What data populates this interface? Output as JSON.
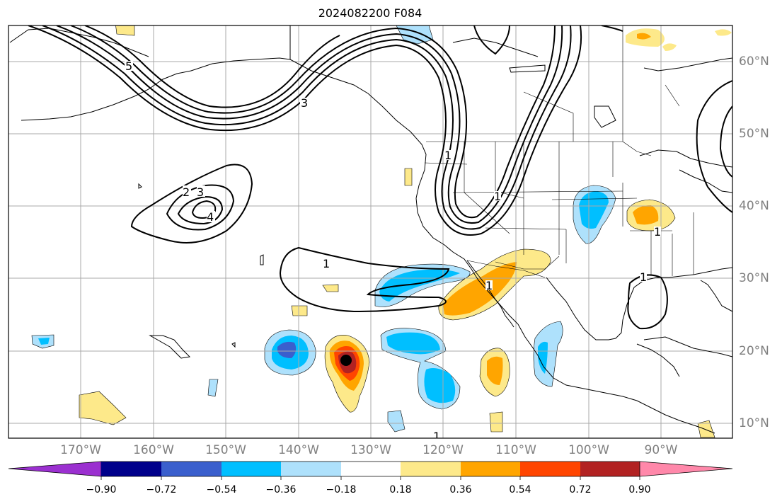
{
  "title": "2024082200 F084",
  "map": {
    "lon_labels": [
      "170°W",
      "160°W",
      "150°W",
      "140°W",
      "130°W",
      "120°W",
      "110°W",
      "100°W",
      "90°W"
    ],
    "lat_labels": [
      "60°N",
      "50°N",
      "40°N",
      "30°N",
      "20°N",
      "10°N"
    ],
    "contour_labels": [
      "5",
      "3",
      "2",
      "3",
      "4",
      "1",
      "1",
      "1",
      "1",
      "1",
      "1",
      "1"
    ]
  },
  "colorbar": {
    "ticks": [
      "−0.90",
      "−0.72",
      "−0.54",
      "−0.36",
      "−0.18",
      "0.18",
      "0.36",
      "0.54",
      "0.72",
      "0.90"
    ],
    "colors": [
      "#9b30d0",
      "#00008b",
      "#3a5fcd",
      "#00bfff",
      "#aee1fc",
      "#ffffff",
      "#fde98a",
      "#ffa500",
      "#ff4500",
      "#b22222",
      "#ff88aa"
    ]
  }
}
